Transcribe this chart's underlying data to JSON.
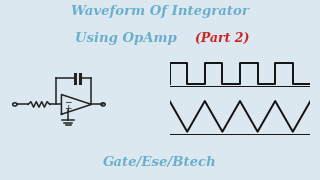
{
  "title_line1": "Waveform Of Integrator",
  "title_line2": "Using OpAmp ",
  "title_part2": "(Part 2)",
  "subtitle": "Gate/Ese/Btech",
  "bg_color": "#dce8f0",
  "title_color": "#6aaecc",
  "part2_color": "#cc2222",
  "subtitle_color": "#6aaecc",
  "waveform_color": "#111111",
  "circuit_color": "#222222",
  "fig_width": 3.2,
  "fig_height": 1.8,
  "dpi": 100
}
